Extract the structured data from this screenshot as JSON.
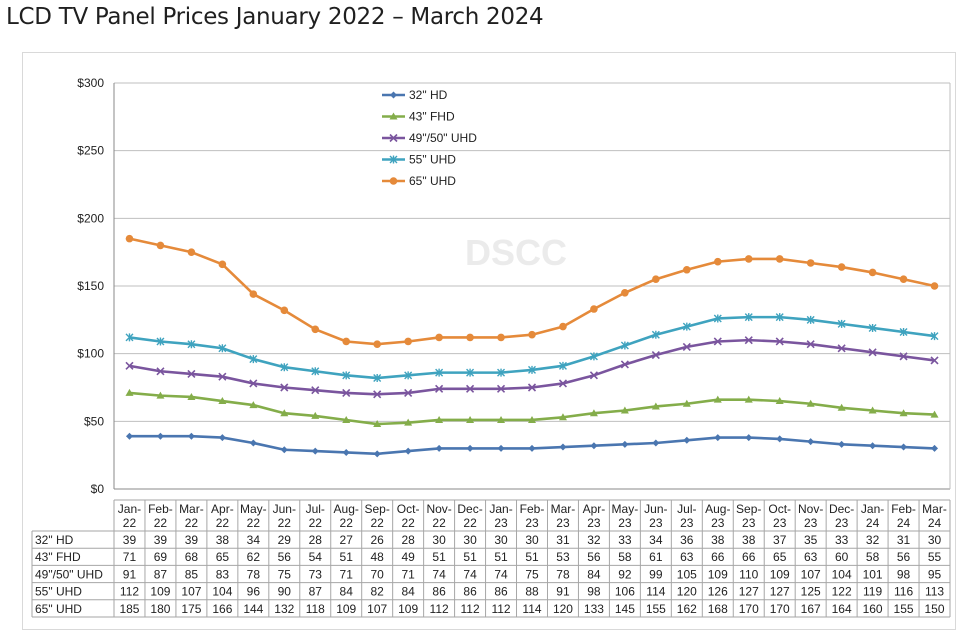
{
  "chart_data": {
    "type": "line",
    "title": "LCD TV Panel Prices January 2022 – March 2024",
    "watermark": "DSCC",
    "xlabel": "",
    "ylabel": "",
    "ylim": [
      0,
      300
    ],
    "yticks": [
      "$0",
      "$50",
      "$100",
      "$150",
      "$200",
      "$250",
      "$300"
    ],
    "ytick_values": [
      0,
      50,
      100,
      150,
      200,
      250,
      300
    ],
    "grid": true,
    "legend_position": "top-center",
    "categories": [
      "Jan-22",
      "Feb-22",
      "Mar-22",
      "Apr-22",
      "May-22",
      "Jun-22",
      "Jul-22",
      "Aug-22",
      "Sep-22",
      "Oct-22",
      "Nov-22",
      "Dec-22",
      "Jan-23",
      "Feb-23",
      "Mar-23",
      "Apr-23",
      "May-23",
      "Jun-23",
      "Jul-23",
      "Aug-23",
      "Sep-23",
      "Oct-23",
      "Nov-23",
      "Dec-23",
      "Jan-24",
      "Feb-24",
      "Mar-24"
    ],
    "series": [
      {
        "name": "32\" HD",
        "color": "#4a76b0",
        "marker": "diamond",
        "values": [
          39,
          39,
          39,
          38,
          34,
          29,
          28,
          27,
          26,
          28,
          30,
          30,
          30,
          30,
          31,
          32,
          33,
          34,
          36,
          38,
          38,
          37,
          35,
          33,
          32,
          31,
          30
        ]
      },
      {
        "name": "43\" FHD",
        "color": "#84ad4a",
        "marker": "triangle",
        "values": [
          71,
          69,
          68,
          65,
          62,
          56,
          54,
          51,
          48,
          49,
          51,
          51,
          51,
          51,
          53,
          56,
          58,
          61,
          63,
          66,
          66,
          65,
          63,
          60,
          58,
          56,
          55
        ]
      },
      {
        "name": "49\"/50\" UHD",
        "color": "#7a559e",
        "marker": "x",
        "values": [
          91,
          87,
          85,
          83,
          78,
          75,
          73,
          71,
          70,
          71,
          74,
          74,
          74,
          75,
          78,
          84,
          92,
          99,
          105,
          109,
          110,
          109,
          107,
          104,
          101,
          98,
          95
        ]
      },
      {
        "name": "55\" UHD",
        "color": "#3fa3bf",
        "marker": "star",
        "values": [
          112,
          109,
          107,
          104,
          96,
          90,
          87,
          84,
          82,
          84,
          86,
          86,
          86,
          88,
          91,
          98,
          106,
          114,
          120,
          126,
          127,
          127,
          125,
          122,
          119,
          116,
          113
        ]
      },
      {
        "name": "65\" UHD",
        "color": "#e58a3a",
        "marker": "circle",
        "values": [
          185,
          180,
          175,
          166,
          144,
          132,
          118,
          109,
          107,
          109,
          112,
          112,
          112,
          114,
          120,
          133,
          145,
          155,
          162,
          168,
          170,
          170,
          167,
          164,
          160,
          155,
          150
        ]
      }
    ]
  }
}
